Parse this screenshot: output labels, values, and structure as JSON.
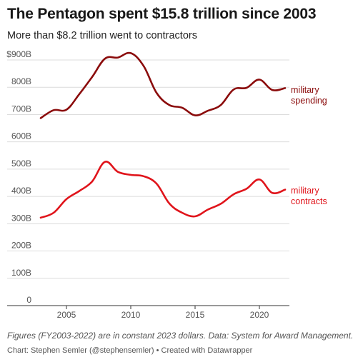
{
  "chart_data": {
    "type": "line",
    "title": "The Pentagon spent $15.8 trillion since 2003",
    "subtitle": "More than $8.2 trillion went to contractors",
    "x": [
      2003,
      2004,
      2005,
      2006,
      2007,
      2008,
      2009,
      2010,
      2011,
      2012,
      2013,
      2014,
      2015,
      2016,
      2017,
      2018,
      2019,
      2020,
      2021,
      2022
    ],
    "x_ticks": [
      2005,
      2010,
      2015,
      2020
    ],
    "y_ticks": [
      0,
      100,
      200,
      300,
      400,
      500,
      600,
      700,
      800,
      900
    ],
    "y_tick_labels": [
      "0",
      "100B",
      "200B",
      "300B",
      "400B",
      "500B",
      "600B",
      "700B",
      "800B",
      "$900B"
    ],
    "ylim": [
      0,
      950
    ],
    "xlim": [
      2003,
      2022
    ],
    "grid": true,
    "series": [
      {
        "name": "military spending",
        "label_lines": [
          "military",
          "spending"
        ],
        "color": "#8b0c0c",
        "values": [
          687,
          716,
          718,
          775,
          838,
          905,
          909,
          925,
          878,
          780,
          735,
          725,
          697,
          714,
          735,
          792,
          798,
          828,
          790,
          797
        ]
      },
      {
        "name": "military contracts",
        "label_lines": [
          "military",
          "contracts"
        ],
        "color": "#e0141b",
        "values": [
          322,
          340,
          390,
          420,
          455,
          527,
          490,
          479,
          474,
          447,
          374,
          340,
          327,
          352,
          373,
          408,
          428,
          462,
          413,
          425
        ]
      }
    ],
    "note": "Figures (FY2003-2022) are in constant 2023 dollars. Data: System for Award Management.",
    "credit": "Chart: Stephen Semler (@stephensemler) • Created with Datawrapper"
  }
}
